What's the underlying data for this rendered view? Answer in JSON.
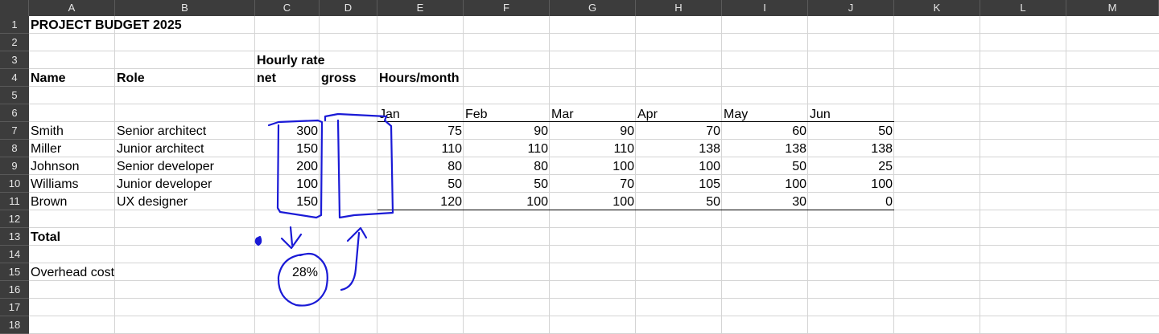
{
  "columns": [
    "A",
    "B",
    "C",
    "D",
    "E",
    "F",
    "G",
    "H",
    "I",
    "J",
    "K",
    "L",
    "M"
  ],
  "rows": [
    "1",
    "2",
    "3",
    "4",
    "5",
    "6",
    "7",
    "8",
    "9",
    "10",
    "11",
    "12",
    "13",
    "14",
    "15",
    "16",
    "17",
    "18"
  ],
  "title": "PROJECT BUDGET 2025",
  "headers": {
    "hourly_rate": "Hourly rate",
    "name": "Name",
    "role": "Role",
    "net": "net",
    "gross": "gross",
    "hours_month": "Hours/month"
  },
  "months": [
    "Jan",
    "Feb",
    "Mar",
    "Apr",
    "May",
    "Jun"
  ],
  "staff": [
    {
      "name": "Smith",
      "role": "Senior architect",
      "net": "300",
      "hours": [
        "75",
        "90",
        "90",
        "70",
        "60",
        "50"
      ]
    },
    {
      "name": "Miller",
      "role": "Junior architect",
      "net": "150",
      "hours": [
        "110",
        "110",
        "110",
        "138",
        "138",
        "138"
      ]
    },
    {
      "name": "Johnson",
      "role": "Senior developer",
      "net": "200",
      "hours": [
        "80",
        "80",
        "100",
        "100",
        "50",
        "25"
      ]
    },
    {
      "name": "Williams",
      "role": "Junior developer",
      "net": "100",
      "hours": [
        "50",
        "50",
        "70",
        "105",
        "100",
        "100"
      ]
    },
    {
      "name": "Brown",
      "role": "UX designer",
      "net": "150",
      "hours": [
        "120",
        "100",
        "100",
        "50",
        "30",
        "0"
      ]
    }
  ],
  "total_label": "Total",
  "overhead": {
    "label": "Overhead cost",
    "value": "28%"
  },
  "ink_color": "#1a1ad6"
}
